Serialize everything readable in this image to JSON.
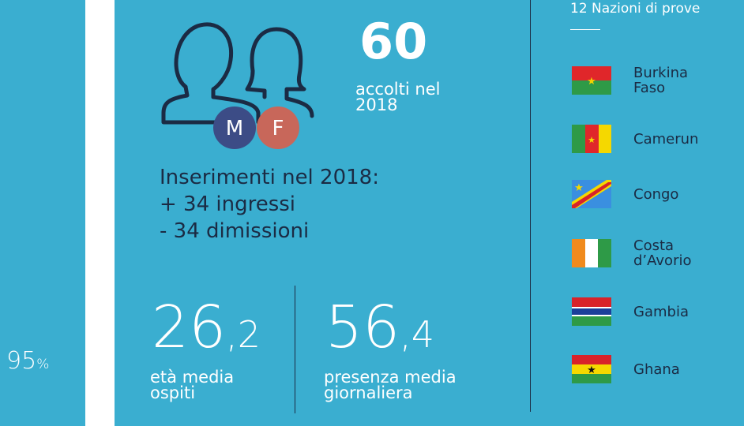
{
  "left_panel": {
    "value": "95",
    "unit": "%"
  },
  "guests": {
    "count": "60",
    "caption": [
      "accolti nel",
      "2018"
    ],
    "male": "M",
    "female": "F"
  },
  "placements": {
    "title": "Inserimenti nel 2018:",
    "lines": [
      "+ 34 ingressi",
      "- 34 dimissioni"
    ]
  },
  "stats": [
    {
      "whole": "26",
      "decimal": ",2",
      "caption": [
        "età media",
        "ospiti"
      ]
    },
    {
      "whole": "56",
      "decimal": ",4",
      "caption": [
        "presenza media",
        "giornaliera"
      ]
    }
  ],
  "nations": {
    "title": "12 Nazioni di prove",
    "countries": [
      {
        "name": [
          "Burkina",
          "Faso"
        ]
      },
      {
        "name": [
          "Camerun"
        ]
      },
      {
        "name": [
          "Congo"
        ]
      },
      {
        "name": [
          "Costa",
          "d’Avorio"
        ]
      },
      {
        "name": [
          "Gambia"
        ]
      },
      {
        "name": [
          "Ghana"
        ]
      }
    ]
  }
}
